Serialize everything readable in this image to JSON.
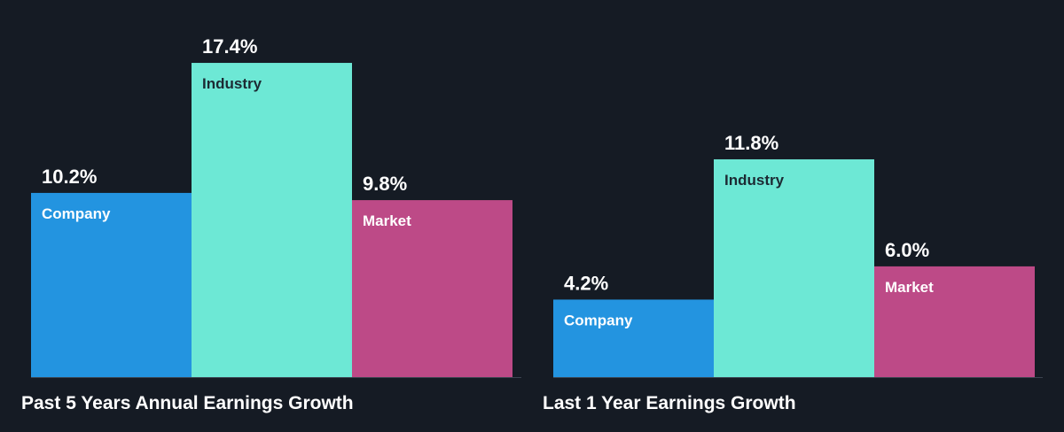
{
  "chart_data": [
    {
      "type": "bar",
      "title": "Past 5 Years Annual Earnings Growth",
      "categories": [
        "Company",
        "Industry",
        "Market"
      ],
      "values": [
        10.2,
        17.4,
        9.8
      ],
      "value_labels": [
        "10.2%",
        "17.4%",
        "9.8%"
      ],
      "unit": "%",
      "ylim": [
        0,
        20
      ],
      "colors": [
        "#2394e0",
        "#6de8d5",
        "#bd4a87"
      ],
      "category_label_colors": [
        "#ffffff",
        "#1c2a33",
        "#ffffff"
      ]
    },
    {
      "type": "bar",
      "title": "Last 1 Year Earnings Growth",
      "categories": [
        "Company",
        "Industry",
        "Market"
      ],
      "values": [
        4.2,
        11.8,
        6.0
      ],
      "value_labels": [
        "4.2%",
        "11.8%",
        "6.0%"
      ],
      "unit": "%",
      "ylim": [
        0,
        14
      ],
      "colors": [
        "#2394e0",
        "#6de8d5",
        "#bd4a87"
      ],
      "category_label_colors": [
        "#ffffff",
        "#1c2a33",
        "#ffffff"
      ]
    }
  ],
  "theme": {
    "background": "#151b24",
    "baseline": "#3b4450",
    "value_label_color": "#ffffff"
  }
}
